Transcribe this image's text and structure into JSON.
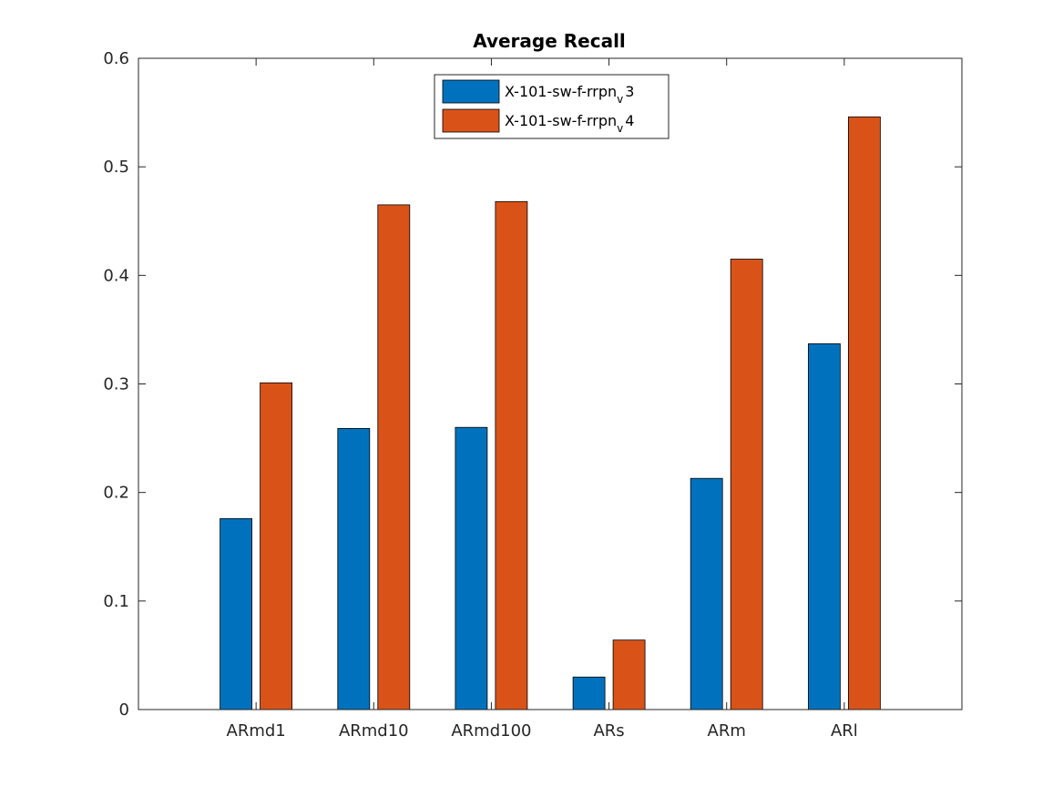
{
  "chart_data": {
    "type": "bar",
    "title": "Average Recall",
    "xlabel": "",
    "ylabel": "",
    "categories": [
      "ARmd1",
      "ARmd10",
      "ARmd100",
      "ARs",
      "ARm",
      "ARl"
    ],
    "ylim": [
      0,
      0.6
    ],
    "yticks": [
      "0",
      "0.1",
      "0.2",
      "0.3",
      "0.4",
      "0.5",
      "0.6"
    ],
    "grid": false,
    "legend_placement": "top-center",
    "series": [
      {
        "name_main": "X-101-sw-f-rrpn",
        "name_sub": "v",
        "name_tail": "3",
        "color": "#0072BD",
        "values": [
          0.176,
          0.259,
          0.26,
          0.03,
          0.213,
          0.337
        ]
      },
      {
        "name_main": "X-101-sw-f-rrpn",
        "name_sub": "v",
        "name_tail": "4",
        "color": "#D95319",
        "values": [
          0.301,
          0.465,
          0.468,
          0.064,
          0.415,
          0.546
        ]
      }
    ]
  }
}
